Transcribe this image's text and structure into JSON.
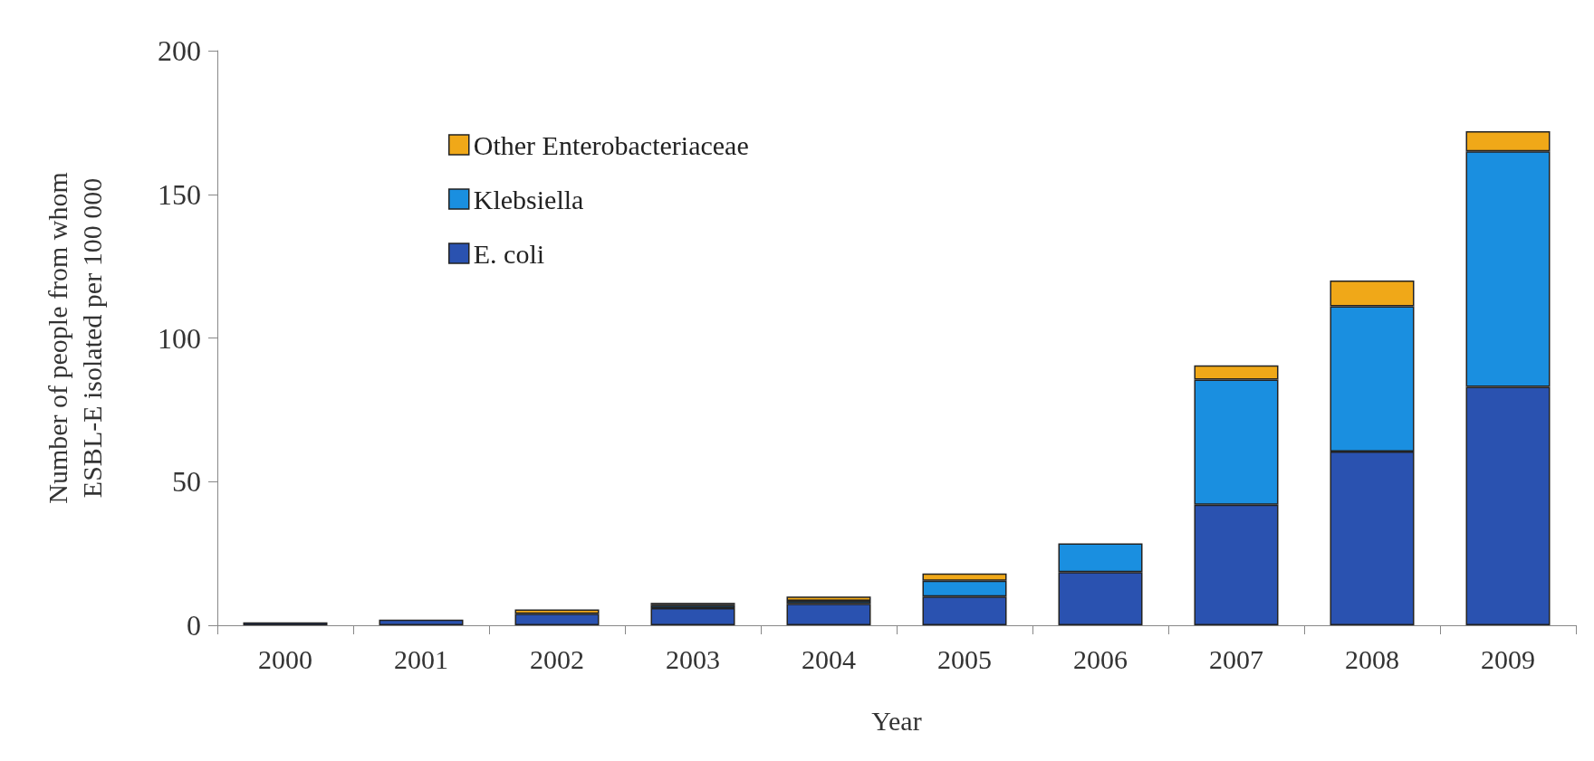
{
  "chart_data": {
    "type": "bar",
    "stacked": true,
    "xlabel": "Year",
    "ylabel": "Number of people from whom\nESBL-E isolated per 100 000",
    "categories": [
      "2000",
      "2001",
      "2002",
      "2003",
      "2004",
      "2005",
      "2006",
      "2007",
      "2008",
      "2009"
    ],
    "series": [
      {
        "name": "E. coli",
        "color": "#2a52b0",
        "values": [
          1,
          2,
          4,
          6,
          7.5,
          10,
          18.5,
          42,
          60.5,
          83
        ]
      },
      {
        "name": "Klebsiella",
        "color": "#1a8fe0",
        "values": [
          null,
          null,
          null,
          1,
          1,
          5.5,
          10,
          43.5,
          50.5,
          82
        ]
      },
      {
        "name": "Other Enterobacteriaceae",
        "color": "#f0a818",
        "values": [
          null,
          null,
          1.5,
          0.8,
          1.5,
          2.5,
          null,
          5,
          9,
          7
        ]
      }
    ],
    "ylim": [
      0,
      200
    ],
    "yticks": [
      0,
      50,
      100,
      150,
      200
    ],
    "grid": false,
    "legend": "top left"
  }
}
